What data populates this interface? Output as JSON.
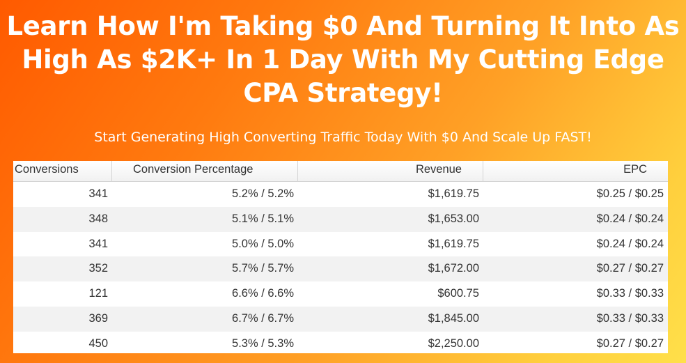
{
  "headline": {
    "line1": "Learn How I'm Taking $0 And Turning It Into As",
    "line2": "High As $2K+ In 1 Day With My Cutting Edge",
    "line3": "CPA Strategy!"
  },
  "subheadline": "Start Generating High Converting Traffic Today With $0 And Scale Up FAST!",
  "table": {
    "headers": {
      "conversions": "Conversions",
      "conversion_percentage": "Conversion Percentage",
      "revenue": "Revenue",
      "epc": "EPC"
    },
    "rows": [
      {
        "conversions": "341",
        "conversion_percentage": "5.2% / 5.2%",
        "revenue": "$1,619.75",
        "epc": "$0.25 / $0.25"
      },
      {
        "conversions": "348",
        "conversion_percentage": "5.1% / 5.1%",
        "revenue": "$1,653.00",
        "epc": "$0.24 / $0.24"
      },
      {
        "conversions": "341",
        "conversion_percentage": "5.0% / 5.0%",
        "revenue": "$1,619.75",
        "epc": "$0.24 / $0.24"
      },
      {
        "conversions": "352",
        "conversion_percentage": "5.7% / 5.7%",
        "revenue": "$1,672.00",
        "epc": "$0.27 / $0.27"
      },
      {
        "conversions": "121",
        "conversion_percentage": "6.6% / 6.6%",
        "revenue": "$600.75",
        "epc": "$0.33 / $0.33"
      },
      {
        "conversions": "369",
        "conversion_percentage": "6.7% / 6.7%",
        "revenue": "$1,845.00",
        "epc": "$0.33 / $0.33"
      },
      {
        "conversions": "450",
        "conversion_percentage": "5.3% / 5.3%",
        "revenue": "$2,250.00",
        "epc": "$0.27 / $0.27"
      }
    ]
  },
  "colors": {
    "background_start": "#ff5a00",
    "background_end": "#ffe04a",
    "text": "#ffffff"
  }
}
